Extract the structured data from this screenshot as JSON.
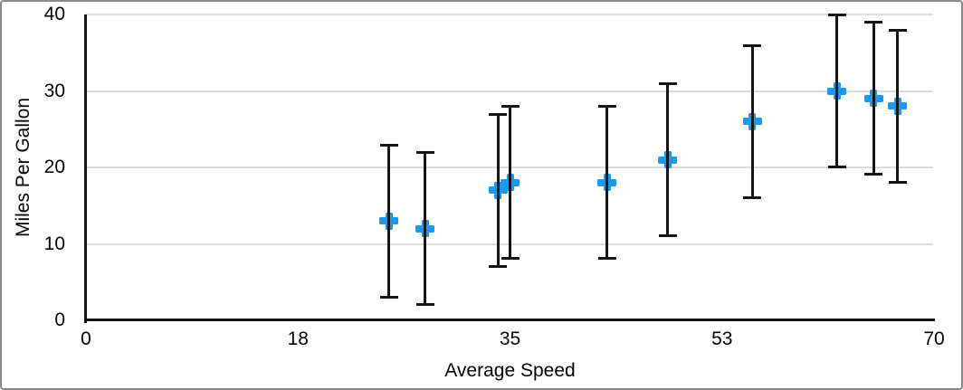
{
  "window": {
    "background_color": "#ffffff",
    "frame_border_color": "#8a8a8a"
  },
  "chart_data": {
    "type": "scatter",
    "title": "",
    "xlabel": "Average Speed",
    "ylabel": "Miles Per Gallon",
    "xlim": [
      0,
      70
    ],
    "ylim": [
      0,
      40
    ],
    "grid": "horizontal-only",
    "gridline_color": "#dcdcdc",
    "axis_color": "#151515",
    "legend": "none",
    "x_ticks": [
      {
        "value": 0,
        "label": "0"
      },
      {
        "value": 17.5,
        "label": "18"
      },
      {
        "value": 35,
        "label": "35"
      },
      {
        "value": 52.5,
        "label": "53"
      },
      {
        "value": 70,
        "label": "70"
      }
    ],
    "y_ticks": [
      {
        "value": 0,
        "label": "0"
      },
      {
        "value": 10,
        "label": "10"
      },
      {
        "value": 20,
        "label": "20"
      },
      {
        "value": 30,
        "label": "30"
      },
      {
        "value": 40,
        "label": "40"
      }
    ],
    "series": [
      {
        "name": "Miles Per Gallon",
        "marker": "plus",
        "marker_color": "#179bf2",
        "error_bars": {
          "axis": "y",
          "type": "fixed",
          "value": 10,
          "direction": "both",
          "color": "#151515"
        },
        "points": [
          {
            "x": 25,
            "y": 13,
            "y_error": 10
          },
          {
            "x": 28,
            "y": 12,
            "y_error": 10
          },
          {
            "x": 34,
            "y": 17,
            "y_error": 10
          },
          {
            "x": 35,
            "y": 18,
            "y_error": 10
          },
          {
            "x": 43,
            "y": 18,
            "y_error": 10
          },
          {
            "x": 48,
            "y": 21,
            "y_error": 10
          },
          {
            "x": 55,
            "y": 26,
            "y_error": 10
          },
          {
            "x": 62,
            "y": 30,
            "y_error": 10
          },
          {
            "x": 65,
            "y": 29,
            "y_error": 10
          },
          {
            "x": 67,
            "y": 28,
            "y_error": 10
          }
        ]
      }
    ]
  }
}
